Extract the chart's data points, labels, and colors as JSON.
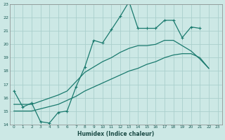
{
  "xlabel": "Humidex (Indice chaleur)",
  "background_color": "#cce8e5",
  "grid_color": "#aacfcc",
  "line_color": "#1a7a6e",
  "xlim": [
    -0.5,
    23.5
  ],
  "ylim": [
    14,
    23
  ],
  "yticks": [
    14,
    15,
    16,
    17,
    18,
    19,
    20,
    21,
    22,
    23
  ],
  "xticks": [
    0,
    1,
    2,
    3,
    4,
    5,
    6,
    7,
    8,
    9,
    10,
    11,
    12,
    13,
    14,
    15,
    16,
    17,
    18,
    19,
    20,
    21,
    22,
    23
  ],
  "series1_x": [
    0,
    1,
    2,
    3,
    4,
    5,
    6,
    7,
    8,
    9,
    10,
    11,
    12,
    13,
    14,
    15,
    16,
    17,
    18,
    19,
    20,
    21
  ],
  "series1_y": [
    16.5,
    15.3,
    15.6,
    14.2,
    14.1,
    14.9,
    15.0,
    16.8,
    18.3,
    20.3,
    20.1,
    21.1,
    22.1,
    23.2,
    21.2,
    21.2,
    21.2,
    21.8,
    21.8,
    20.5,
    21.3,
    21.2
  ],
  "series2_x": [
    0,
    2,
    5,
    6,
    7,
    8,
    9,
    10,
    11,
    12,
    13,
    14,
    15,
    16,
    17,
    18,
    19,
    20,
    21,
    22
  ],
  "series2_y": [
    15.5,
    15.5,
    16.2,
    16.5,
    17.2,
    17.9,
    18.3,
    18.7,
    19.0,
    19.4,
    19.7,
    19.9,
    19.9,
    20.0,
    20.3,
    20.3,
    19.9,
    19.5,
    18.9,
    18.2
  ],
  "series3_x": [
    0,
    2,
    5,
    6,
    7,
    8,
    9,
    10,
    11,
    12,
    13,
    14,
    15,
    16,
    17,
    18,
    19,
    20,
    21,
    22
  ],
  "series3_y": [
    15.0,
    15.0,
    15.5,
    15.8,
    16.1,
    16.5,
    16.8,
    17.1,
    17.4,
    17.7,
    18.0,
    18.2,
    18.5,
    18.7,
    19.0,
    19.2,
    19.3,
    19.3,
    19.0,
    18.2
  ]
}
